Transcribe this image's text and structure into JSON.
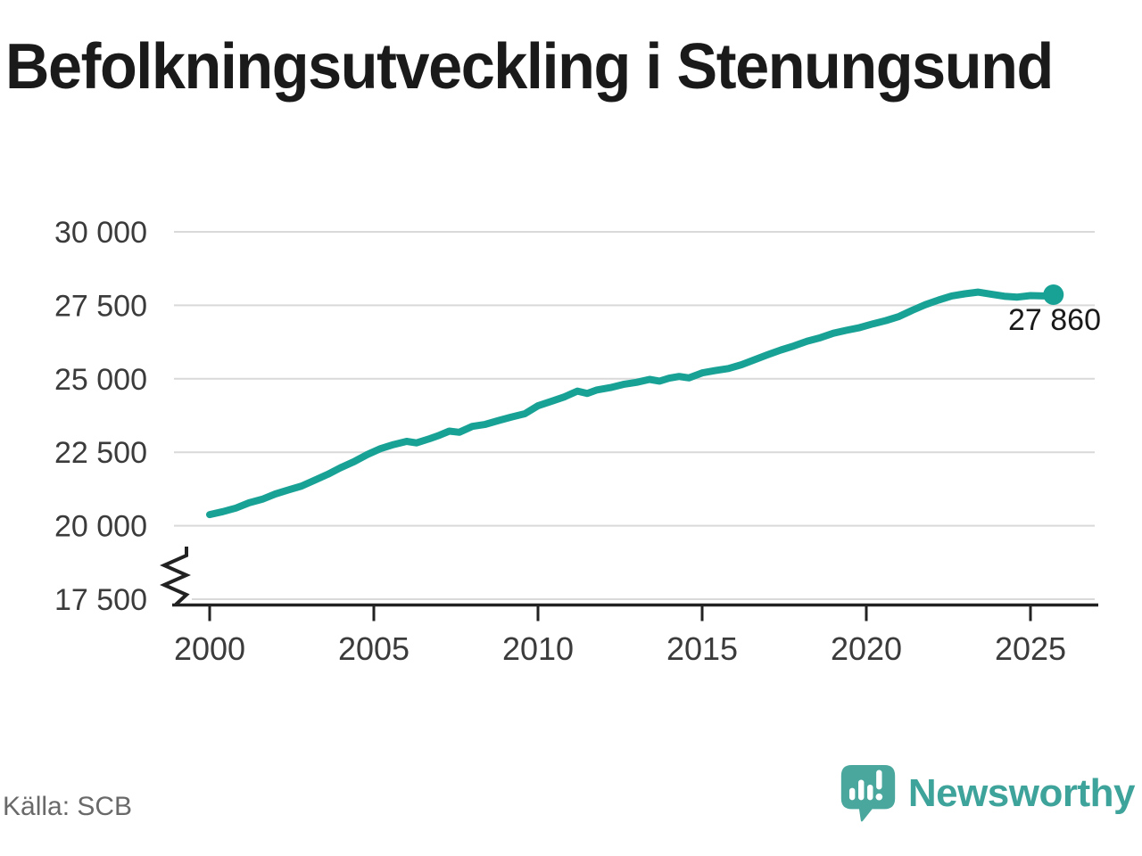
{
  "header": {
    "title": "Befolkningsutveckling i Stenungsund"
  },
  "footer": {
    "source_label": "Källa: SCB",
    "brand_name": "Newsworthy"
  },
  "colors": {
    "line": "#17a295",
    "marker": "#17a295",
    "grid": "#d9d9d9",
    "axis": "#222222",
    "tick_label": "#3b3b3b",
    "title": "#1a1a1a",
    "end_label": "#1a1a1a",
    "source": "#696969",
    "brand_teal": "#3ea39a",
    "logo_bubble": "#4aa79d"
  },
  "chart_data": {
    "type": "line",
    "title": "Befolkningsutveckling i Stenungsund",
    "grid": "horizontal",
    "legend": "none",
    "y_axis_break": true,
    "xlim": [
      1998.9,
      2026.9
    ],
    "ylim_visible": [
      17500,
      30000
    ],
    "x_ticks": [
      {
        "value": 2000,
        "label": "2000"
      },
      {
        "value": 2005,
        "label": "2005"
      },
      {
        "value": 2010,
        "label": "2010"
      },
      {
        "value": 2015,
        "label": "2015"
      },
      {
        "value": 2020,
        "label": "2020"
      },
      {
        "value": 2025,
        "label": "2025"
      }
    ],
    "y_ticks": [
      {
        "value": 30000,
        "label": "30 000"
      },
      {
        "value": 27500,
        "label": "27 500"
      },
      {
        "value": 25000,
        "label": "25 000"
      },
      {
        "value": 22500,
        "label": "22 500"
      },
      {
        "value": 20000,
        "label": "20 000"
      },
      {
        "value": 17500,
        "label": "17 500"
      }
    ],
    "end_label": "27 860",
    "end_value": 27860,
    "series": [
      {
        "color": "#17a295",
        "points": [
          [
            2000.0,
            20380
          ],
          [
            2000.4,
            20480
          ],
          [
            2000.8,
            20600
          ],
          [
            2001.2,
            20780
          ],
          [
            2001.6,
            20900
          ],
          [
            2002.0,
            21080
          ],
          [
            2002.4,
            21220
          ],
          [
            2002.8,
            21350
          ],
          [
            2003.2,
            21550
          ],
          [
            2003.6,
            21750
          ],
          [
            2004.0,
            21980
          ],
          [
            2004.4,
            22180
          ],
          [
            2004.8,
            22420
          ],
          [
            2005.2,
            22620
          ],
          [
            2005.6,
            22760
          ],
          [
            2006.0,
            22870
          ],
          [
            2006.3,
            22820
          ],
          [
            2006.7,
            22960
          ],
          [
            2007.0,
            23080
          ],
          [
            2007.3,
            23220
          ],
          [
            2007.6,
            23180
          ],
          [
            2008.0,
            23380
          ],
          [
            2008.4,
            23450
          ],
          [
            2008.8,
            23580
          ],
          [
            2009.2,
            23700
          ],
          [
            2009.6,
            23810
          ],
          [
            2010.0,
            24080
          ],
          [
            2010.4,
            24230
          ],
          [
            2010.8,
            24380
          ],
          [
            2011.2,
            24580
          ],
          [
            2011.5,
            24500
          ],
          [
            2011.8,
            24620
          ],
          [
            2012.2,
            24700
          ],
          [
            2012.6,
            24810
          ],
          [
            2013.0,
            24880
          ],
          [
            2013.4,
            24980
          ],
          [
            2013.7,
            24920
          ],
          [
            2014.0,
            25020
          ],
          [
            2014.3,
            25080
          ],
          [
            2014.6,
            25030
          ],
          [
            2015.0,
            25200
          ],
          [
            2015.4,
            25280
          ],
          [
            2015.8,
            25350
          ],
          [
            2016.2,
            25480
          ],
          [
            2016.6,
            25650
          ],
          [
            2017.0,
            25820
          ],
          [
            2017.4,
            25980
          ],
          [
            2017.8,
            26120
          ],
          [
            2018.2,
            26280
          ],
          [
            2018.6,
            26400
          ],
          [
            2019.0,
            26550
          ],
          [
            2019.4,
            26650
          ],
          [
            2019.8,
            26740
          ],
          [
            2020.2,
            26870
          ],
          [
            2020.6,
            26980
          ],
          [
            2021.0,
            27120
          ],
          [
            2021.4,
            27330
          ],
          [
            2021.8,
            27520
          ],
          [
            2022.2,
            27680
          ],
          [
            2022.6,
            27820
          ],
          [
            2023.0,
            27890
          ],
          [
            2023.4,
            27950
          ],
          [
            2023.8,
            27880
          ],
          [
            2024.2,
            27810
          ],
          [
            2024.6,
            27780
          ],
          [
            2025.0,
            27830
          ],
          [
            2025.4,
            27820
          ],
          [
            2025.7,
            27860
          ]
        ]
      }
    ]
  }
}
